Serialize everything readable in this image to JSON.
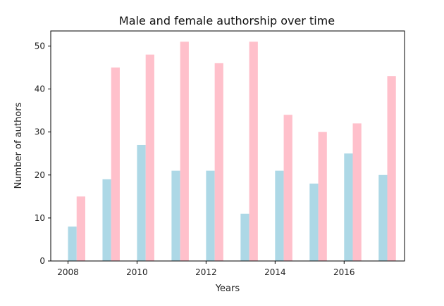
{
  "chart_data": {
    "type": "bar",
    "title": "Male and female authorship over time",
    "xlabel": "Years",
    "ylabel": "Number of authors",
    "x": [
      2008,
      2009,
      2010,
      2011,
      2012,
      2013,
      2014,
      2015,
      2016,
      2017
    ],
    "xticks": [
      "2008",
      "2010",
      "2012",
      "2014",
      "2016"
    ],
    "yticks": [
      "0",
      "10",
      "20",
      "30",
      "40",
      "50"
    ],
    "ylim": [
      0,
      53.5
    ],
    "xlim": [
      2007.5,
      2017.75
    ],
    "grid": false,
    "series": [
      {
        "values": [
          8,
          19,
          27,
          21,
          21,
          11,
          21,
          18,
          25,
          20
        ],
        "color": "#add8e6"
      },
      {
        "values": [
          15,
          45,
          48,
          51,
          46,
          51,
          34,
          30,
          32,
          43
        ],
        "color": "#ffc0cb"
      }
    ]
  }
}
